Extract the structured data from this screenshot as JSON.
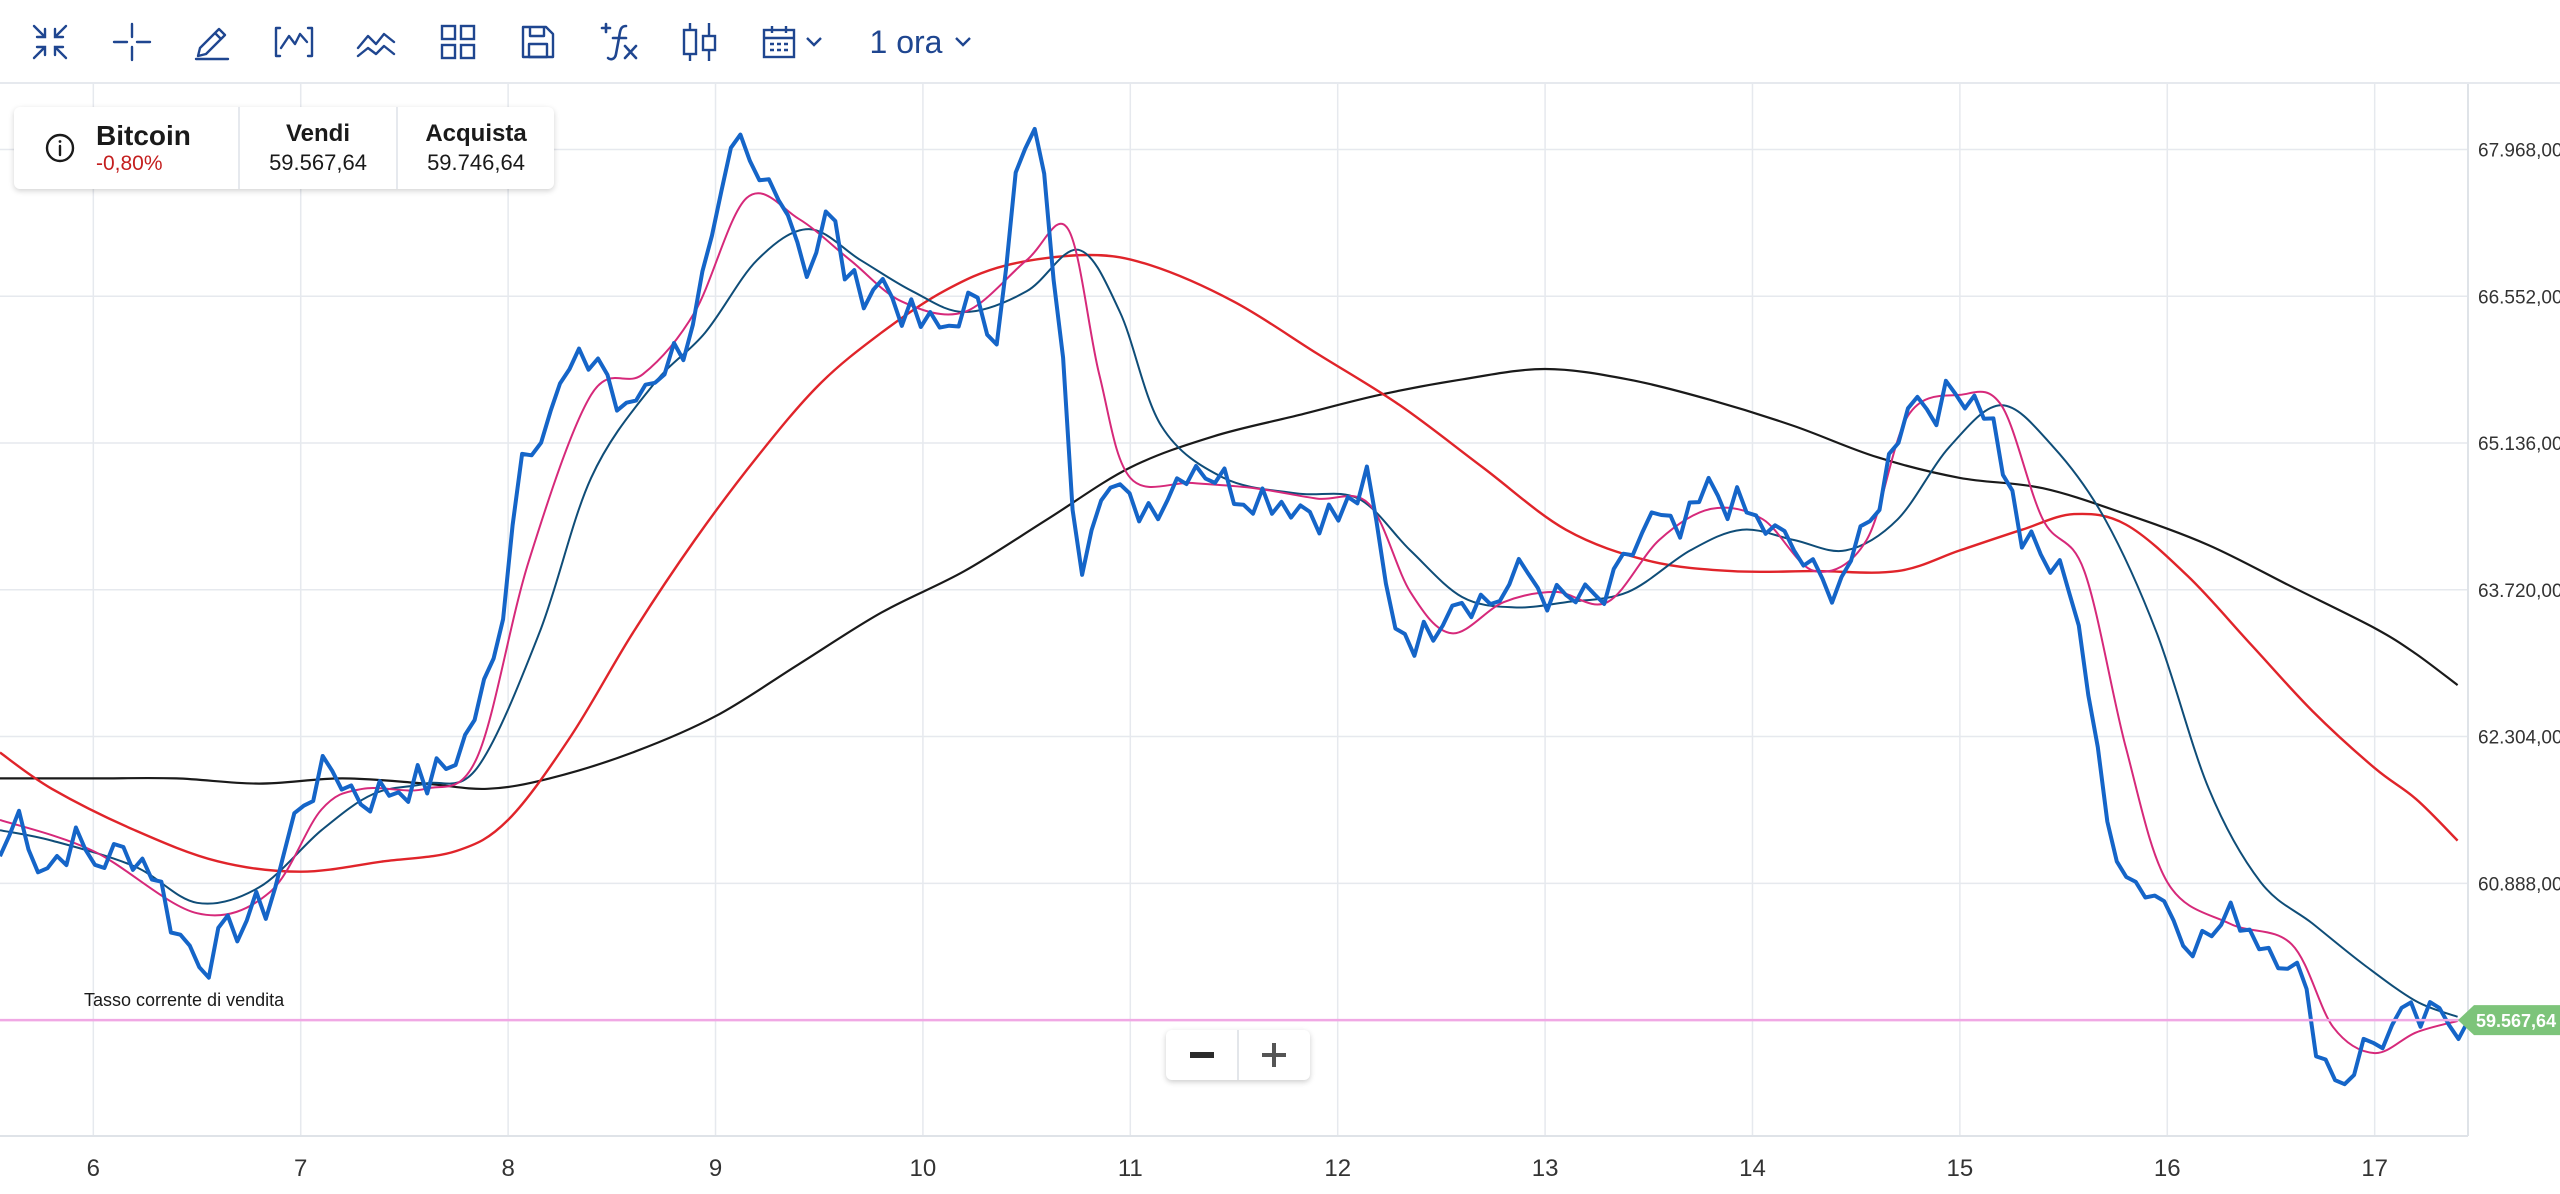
{
  "toolbar": {
    "timeframe": "1 ora"
  },
  "instrument": {
    "name": "Bitcoin",
    "change": "-0,80%",
    "sell_label": "Vendi",
    "sell_price": "59.567,64",
    "buy_label": "Acquista",
    "buy_price": "59.746,64"
  },
  "colors": {
    "price": "#1565c8",
    "ma_fast": "#d6297a",
    "ma_medium": "#0f4d78",
    "ma_slow": "#e0242a",
    "ma_long": "#1a1a1a",
    "current_line": "#f0a8e4",
    "price_badge": "#7dc47a",
    "grid": "#e6e9ee"
  },
  "chart_data": {
    "type": "line",
    "title": "",
    "xlabel": "",
    "ylabel": "",
    "xlim": [
      5.55,
      17.45
    ],
    "ylim": [
      58450,
      68600
    ],
    "grid": true,
    "x_ticks": [
      6,
      7,
      8,
      9,
      10,
      11,
      12,
      13,
      14,
      15,
      16,
      17
    ],
    "x_tick_labels": [
      "6",
      "7",
      "8",
      "9",
      "10",
      "11",
      "12",
      "13",
      "14",
      "15",
      "16",
      "17"
    ],
    "y_ticks": [
      60888,
      62304,
      63720,
      65136,
      66552,
      67968
    ],
    "y_tick_labels": [
      "60.888,00",
      "62.304,00",
      "63.720,00",
      "65.136,00",
      "66.552,00",
      "67.968,00"
    ],
    "current_value": 59567.64,
    "current_value_label": "59.567,64",
    "current_line_label": "Tasso corrente di vendita",
    "price_anchors": [
      [
        5.55,
        61150
      ],
      [
        5.65,
        61600
      ],
      [
        5.75,
        61000
      ],
      [
        5.9,
        61300
      ],
      [
        6.0,
        61100
      ],
      [
        6.2,
        61200
      ],
      [
        6.3,
        61000
      ],
      [
        6.4,
        60400
      ],
      [
        6.55,
        60150
      ],
      [
        6.7,
        60500
      ],
      [
        6.85,
        60700
      ],
      [
        7.0,
        61700
      ],
      [
        7.15,
        62000
      ],
      [
        7.3,
        61700
      ],
      [
        7.5,
        61850
      ],
      [
        7.6,
        61850
      ],
      [
        7.7,
        62000
      ],
      [
        7.8,
        62300
      ],
      [
        7.95,
        63100
      ],
      [
        8.05,
        65000
      ],
      [
        8.15,
        65300
      ],
      [
        8.3,
        65800
      ],
      [
        8.45,
        66000
      ],
      [
        8.55,
        65300
      ],
      [
        8.65,
        65700
      ],
      [
        8.85,
        66100
      ],
      [
        9.0,
        67100
      ],
      [
        9.1,
        68050
      ],
      [
        9.2,
        67600
      ],
      [
        9.3,
        67700
      ],
      [
        9.45,
        66800
      ],
      [
        9.55,
        67400
      ],
      [
        9.65,
        66600
      ],
      [
        9.8,
        66700
      ],
      [
        9.95,
        66300
      ],
      [
        10.1,
        66200
      ],
      [
        10.2,
        66500
      ],
      [
        10.35,
        66200
      ],
      [
        10.45,
        67700
      ],
      [
        10.55,
        68150
      ],
      [
        10.65,
        66500
      ],
      [
        10.75,
        63900
      ],
      [
        10.85,
        64800
      ],
      [
        11.0,
        64500
      ],
      [
        11.15,
        64600
      ],
      [
        11.3,
        65000
      ],
      [
        11.5,
        64700
      ],
      [
        11.75,
        64600
      ],
      [
        12.0,
        64400
      ],
      [
        12.15,
        64750
      ],
      [
        12.25,
        63500
      ],
      [
        12.4,
        63200
      ],
      [
        12.55,
        63700
      ],
      [
        12.75,
        63600
      ],
      [
        12.9,
        63900
      ],
      [
        13.05,
        63600
      ],
      [
        13.3,
        63600
      ],
      [
        13.5,
        64400
      ],
      [
        13.65,
        64200
      ],
      [
        13.8,
        64700
      ],
      [
        14.0,
        64400
      ],
      [
        14.2,
        64100
      ],
      [
        14.35,
        63700
      ],
      [
        14.55,
        64200
      ],
      [
        14.75,
        65600
      ],
      [
        14.9,
        65500
      ],
      [
        15.05,
        65700
      ],
      [
        15.15,
        65400
      ],
      [
        15.3,
        64200
      ],
      [
        15.45,
        63900
      ],
      [
        15.55,
        63800
      ],
      [
        15.7,
        61500
      ],
      [
        15.85,
        60900
      ],
      [
        15.95,
        60800
      ],
      [
        16.15,
        60300
      ],
      [
        16.35,
        60600
      ],
      [
        16.45,
        60350
      ],
      [
        16.6,
        60200
      ],
      [
        16.75,
        59200
      ],
      [
        16.85,
        59000
      ],
      [
        16.95,
        59300
      ],
      [
        17.15,
        59550
      ],
      [
        17.4,
        59560
      ]
    ],
    "series": [
      {
        "values": [
          [
            5.55,
            61500
          ],
          [
            6.0,
            61200
          ],
          [
            6.5,
            60600
          ],
          [
            6.85,
            60800
          ],
          [
            7.1,
            61600
          ],
          [
            7.3,
            61800
          ],
          [
            7.6,
            61800
          ],
          [
            7.85,
            62100
          ],
          [
            8.1,
            64000
          ],
          [
            8.4,
            65600
          ],
          [
            8.65,
            65800
          ],
          [
            8.9,
            66400
          ],
          [
            9.15,
            67500
          ],
          [
            9.4,
            67300
          ],
          [
            9.65,
            66900
          ],
          [
            9.9,
            66500
          ],
          [
            10.2,
            66400
          ],
          [
            10.5,
            66900
          ],
          [
            10.7,
            67200
          ],
          [
            10.85,
            65800
          ],
          [
            11.0,
            64800
          ],
          [
            11.3,
            64750
          ],
          [
            11.6,
            64700
          ],
          [
            11.9,
            64600
          ],
          [
            12.15,
            64550
          ],
          [
            12.35,
            63700
          ],
          [
            12.55,
            63300
          ],
          [
            12.8,
            63600
          ],
          [
            13.05,
            63700
          ],
          [
            13.3,
            63600
          ],
          [
            13.55,
            64200
          ],
          [
            13.8,
            64500
          ],
          [
            14.05,
            64400
          ],
          [
            14.3,
            63900
          ],
          [
            14.55,
            64200
          ],
          [
            14.75,
            65400
          ],
          [
            15.0,
            65600
          ],
          [
            15.2,
            65500
          ],
          [
            15.4,
            64400
          ],
          [
            15.6,
            63900
          ],
          [
            15.8,
            62200
          ],
          [
            16.0,
            60900
          ],
          [
            16.3,
            60500
          ],
          [
            16.6,
            60300
          ],
          [
            16.8,
            59500
          ],
          [
            17.0,
            59250
          ],
          [
            17.2,
            59450
          ],
          [
            17.4,
            59560
          ]
        ]
      },
      {
        "values": [
          [
            5.55,
            61400
          ],
          [
            5.8,
            61300
          ],
          [
            6.2,
            61050
          ],
          [
            6.5,
            60700
          ],
          [
            6.8,
            60850
          ],
          [
            7.1,
            61400
          ],
          [
            7.35,
            61750
          ],
          [
            7.6,
            61850
          ],
          [
            7.85,
            62000
          ],
          [
            8.15,
            63300
          ],
          [
            8.4,
            64800
          ],
          [
            8.7,
            65700
          ],
          [
            8.95,
            66200
          ],
          [
            9.2,
            66900
          ],
          [
            9.45,
            67200
          ],
          [
            9.7,
            66900
          ],
          [
            9.95,
            66600
          ],
          [
            10.2,
            66400
          ],
          [
            10.5,
            66600
          ],
          [
            10.75,
            67000
          ],
          [
            10.95,
            66400
          ],
          [
            11.15,
            65300
          ],
          [
            11.45,
            64800
          ],
          [
            11.8,
            64650
          ],
          [
            12.1,
            64600
          ],
          [
            12.35,
            64100
          ],
          [
            12.6,
            63650
          ],
          [
            12.85,
            63550
          ],
          [
            13.1,
            63600
          ],
          [
            13.4,
            63700
          ],
          [
            13.7,
            64100
          ],
          [
            13.95,
            64300
          ],
          [
            14.2,
            64200
          ],
          [
            14.45,
            64100
          ],
          [
            14.7,
            64400
          ],
          [
            14.95,
            65100
          ],
          [
            15.2,
            65500
          ],
          [
            15.45,
            65100
          ],
          [
            15.7,
            64400
          ],
          [
            15.95,
            63300
          ],
          [
            16.2,
            61800
          ],
          [
            16.45,
            60900
          ],
          [
            16.7,
            60500
          ],
          [
            16.95,
            60100
          ],
          [
            17.2,
            59750
          ],
          [
            17.4,
            59600
          ]
        ]
      },
      {
        "values": [
          [
            5.55,
            62150
          ],
          [
            5.8,
            61800
          ],
          [
            6.2,
            61400
          ],
          [
            6.6,
            61100
          ],
          [
            7.0,
            61000
          ],
          [
            7.4,
            61100
          ],
          [
            7.75,
            61200
          ],
          [
            8.0,
            61500
          ],
          [
            8.3,
            62300
          ],
          [
            8.6,
            63300
          ],
          [
            8.9,
            64200
          ],
          [
            9.2,
            65000
          ],
          [
            9.5,
            65700
          ],
          [
            9.8,
            66200
          ],
          [
            10.1,
            66600
          ],
          [
            10.4,
            66850
          ],
          [
            10.8,
            66950
          ],
          [
            11.1,
            66850
          ],
          [
            11.5,
            66500
          ],
          [
            11.9,
            66000
          ],
          [
            12.3,
            65500
          ],
          [
            12.7,
            64900
          ],
          [
            13.1,
            64300
          ],
          [
            13.5,
            64000
          ],
          [
            13.9,
            63900
          ],
          [
            14.3,
            63900
          ],
          [
            14.7,
            63900
          ],
          [
            15.0,
            64100
          ],
          [
            15.3,
            64300
          ],
          [
            15.55,
            64450
          ],
          [
            15.8,
            64350
          ],
          [
            16.1,
            63850
          ],
          [
            16.4,
            63200
          ],
          [
            16.7,
            62550
          ],
          [
            17.0,
            62000
          ],
          [
            17.2,
            61700
          ],
          [
            17.4,
            61300
          ]
        ]
      },
      {
        "values": [
          [
            5.55,
            61900
          ],
          [
            6.0,
            61900
          ],
          [
            6.4,
            61900
          ],
          [
            6.8,
            61850
          ],
          [
            7.2,
            61900
          ],
          [
            7.6,
            61850
          ],
          [
            7.9,
            61800
          ],
          [
            8.2,
            61900
          ],
          [
            8.6,
            62150
          ],
          [
            9.0,
            62500
          ],
          [
            9.4,
            63000
          ],
          [
            9.8,
            63500
          ],
          [
            10.2,
            63900
          ],
          [
            10.6,
            64400
          ],
          [
            11.0,
            64900
          ],
          [
            11.4,
            65200
          ],
          [
            11.8,
            65400
          ],
          [
            12.2,
            65600
          ],
          [
            12.6,
            65750
          ],
          [
            13.0,
            65850
          ],
          [
            13.4,
            65750
          ],
          [
            13.8,
            65550
          ],
          [
            14.2,
            65300
          ],
          [
            14.6,
            65000
          ],
          [
            15.0,
            64800
          ],
          [
            15.4,
            64700
          ],
          [
            15.8,
            64450
          ],
          [
            16.2,
            64150
          ],
          [
            16.6,
            63750
          ],
          [
            17.0,
            63350
          ],
          [
            17.2,
            63100
          ],
          [
            17.4,
            62800
          ]
        ]
      }
    ]
  }
}
